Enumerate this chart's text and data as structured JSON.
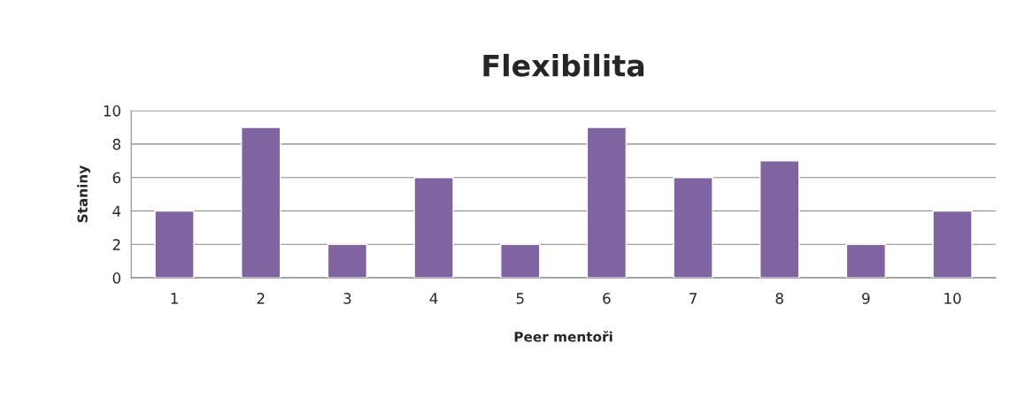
{
  "chart_data": {
    "type": "bar",
    "title": "Flexibilita",
    "xlabel": "Peer mentoři",
    "ylabel": "Staniny",
    "categories": [
      "1",
      "2",
      "3",
      "4",
      "5",
      "6",
      "7",
      "8",
      "9",
      "10"
    ],
    "values": [
      4,
      9,
      2,
      6,
      2,
      9,
      6,
      7,
      2,
      4
    ],
    "color": "#8064a2",
    "ylim": [
      0,
      10
    ],
    "yticks": [
      0,
      2,
      4,
      6,
      8,
      10
    ],
    "grid": "y",
    "legend": false
  }
}
